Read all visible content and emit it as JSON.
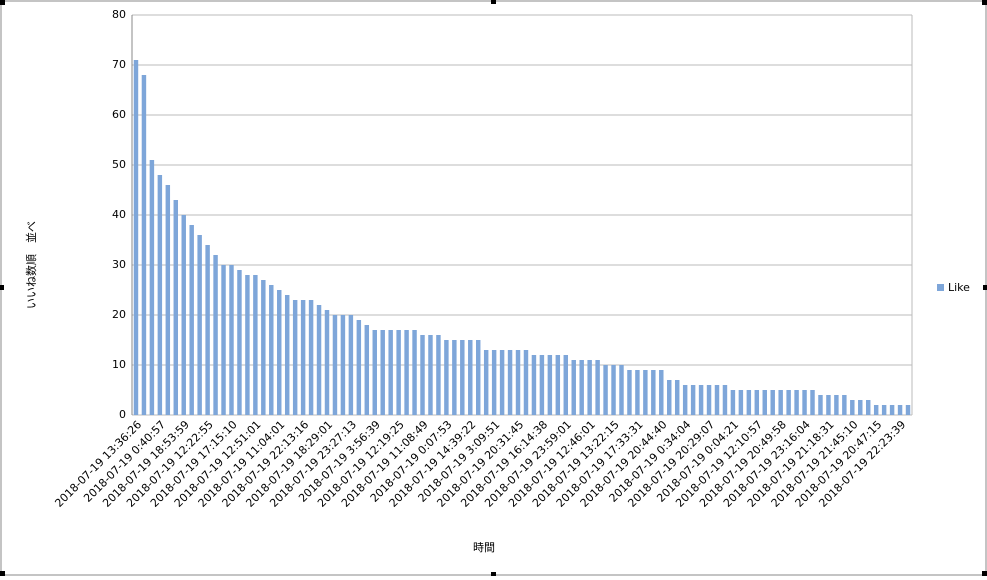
{
  "chart_data": {
    "type": "bar",
    "categories": [
      "2018-07-19 13:36:26",
      null,
      null,
      "2018-07-19 0:40:57",
      null,
      null,
      "2018-07-19 18:53:59",
      null,
      null,
      "2018-07-19 12:22:55",
      null,
      null,
      "2018-07-19 17:15:10",
      null,
      null,
      "2018-07-19 12:51:01",
      null,
      null,
      "2018-07-19 11:04:01",
      null,
      null,
      "2018-07-19 22:13:16",
      null,
      null,
      "2018-07-19 18:29:01",
      null,
      null,
      "2018-07-19 23:27:13",
      null,
      null,
      "2018-07-19 3:56:39",
      null,
      null,
      "2018-07-19 12:19:25",
      null,
      null,
      "2018-07-19 11:08:49",
      null,
      null,
      "2018-07-19 0:07:53",
      null,
      null,
      "2018-07-19 14:39:22",
      null,
      null,
      "2018-07-19 3:09:51",
      null,
      null,
      "2018-07-19 20:31:45",
      null,
      null,
      "2018-07-19 16:14:38",
      null,
      null,
      "2018-07-19 23:59:01",
      null,
      null,
      "2018-07-19 12:46:01",
      null,
      null,
      "2018-07-19 13:22:15",
      null,
      null,
      "2018-07-19 17:33:31",
      null,
      null,
      "2018-07-19 20:44:40",
      null,
      null,
      "2018-07-19 0:34:04",
      null,
      null,
      "2018-07-19 20:29:07",
      null,
      null,
      "2018-07-19 0:04:21",
      null,
      null,
      "2018-07-19 12:10:57",
      null,
      null,
      "2018-07-19 20:49:58",
      null,
      null,
      "2018-07-19 23:16:04",
      null,
      null,
      "2018-07-19 21:18:31",
      null,
      null,
      "2018-07-19 21:45:10",
      null,
      null,
      "2018-07-19 20:47:15",
      null,
      null,
      "2018-07-19 22:23:39",
      null
    ],
    "series": [
      {
        "name": "Like",
        "color": "#7ea6d9",
        "values": [
          71,
          68,
          51,
          48,
          46,
          43,
          40,
          38,
          36,
          34,
          32,
          30,
          30,
          29,
          28,
          28,
          27,
          26,
          25,
          24,
          23,
          23,
          23,
          22,
          21,
          20,
          20,
          20,
          19,
          18,
          17,
          17,
          17,
          17,
          17,
          17,
          16,
          16,
          16,
          15,
          15,
          15,
          15,
          15,
          13,
          13,
          13,
          13,
          13,
          13,
          12,
          12,
          12,
          12,
          12,
          11,
          11,
          11,
          11,
          10,
          10,
          10,
          9,
          9,
          9,
          9,
          9,
          7,
          7,
          6,
          6,
          6,
          6,
          6,
          6,
          5,
          5,
          5,
          5,
          5,
          5,
          5,
          5,
          5,
          5,
          5,
          4,
          4,
          4,
          4,
          3,
          3,
          3,
          2,
          2,
          2,
          2,
          2
        ]
      }
    ],
    "ylim": [
      0,
      80
    ],
    "yticks": [
      0,
      10,
      20,
      30,
      40,
      50,
      60,
      70,
      80
    ],
    "xlabel": "時間",
    "ylabel": "いいね数順　並べ",
    "grid": true,
    "legend": "right"
  }
}
